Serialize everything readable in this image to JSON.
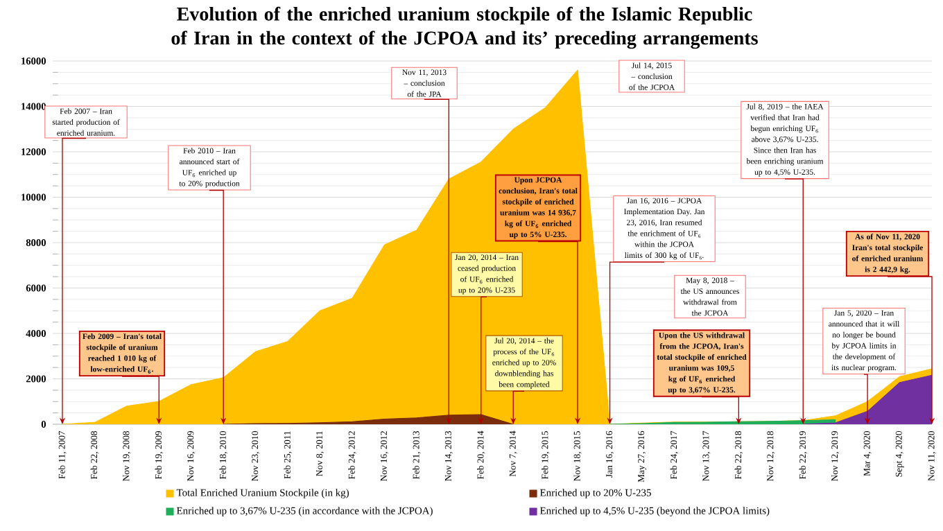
{
  "chart_data": {
    "type": "area",
    "title": "Evolution of the enriched uranium stockpile of the Islamic Republic of Iran in the context of the JCPOA and its’ preceding arrangements",
    "categories": [
      "Feb 11, 2007",
      "Feb 22, 2008",
      "Nov 19, 2008",
      "Feb 19, 2009",
      "Nov 16, 2009",
      "Feb 18, 2010",
      "Nov 23, 2010",
      "Feb 25, 2011",
      "Nov 8, 2011",
      "Feb 24, 2012",
      "Nov 16, 2012",
      "Feb 21, 2013",
      "Nov 14, 2013",
      "Feb 20, 2014",
      "Nov 7, 2014",
      "Feb 19, 2015",
      "Nov 18, 2015",
      "Jan 16, 2016",
      "May 27, 2016",
      "Feb 24, 2017",
      "Nov 13, 2017",
      "Feb 22, 2018",
      "Nov 12, 2018",
      "Feb 22, 2019",
      "Nov 12, 2019",
      "Mar 4, 2020",
      "Sept 4, 2020",
      "Nov 11, 2020"
    ],
    "series": [
      {
        "name": "Total Enriched Uranium Stockpile (in kg)",
        "color": "#ffc000",
        "values": [
          0,
          80,
          800,
          1010,
          1750,
          2050,
          3200,
          3650,
          5000,
          5550,
          7900,
          8550,
          10800,
          11550,
          13000,
          13950,
          15600,
          0,
          50,
          100,
          100,
          110,
          130,
          160,
          370,
          1000,
          2100,
          2442.9
        ]
      },
      {
        "name": "Enriched up to 20% U-235",
        "color": "#7b2c0c",
        "values": [
          null,
          null,
          null,
          null,
          null,
          0,
          30,
          40,
          70,
          110,
          230,
          280,
          400,
          430,
          0,
          null,
          null,
          null,
          null,
          null,
          null,
          null,
          null,
          null,
          null,
          null,
          null,
          null
        ]
      },
      {
        "name": "Enriched up to 3,67% U-235 (in accordance with the JCPOA)",
        "color": "#1fae5b",
        "values": [
          null,
          null,
          null,
          null,
          null,
          null,
          null,
          null,
          null,
          null,
          null,
          null,
          null,
          null,
          null,
          null,
          null,
          0,
          30,
          80,
          90,
          110,
          130,
          160,
          200,
          null,
          null,
          null
        ]
      },
      {
        "name": "Enriched up to 4,5% U-235 (beyond the JCPOA limits)",
        "color": "#7030a0",
        "values": [
          null,
          null,
          null,
          null,
          null,
          null,
          null,
          null,
          null,
          null,
          null,
          null,
          null,
          null,
          null,
          null,
          null,
          null,
          null,
          null,
          null,
          null,
          null,
          0,
          60,
          570,
          1840,
          2160
        ]
      }
    ],
    "ylim": [
      0,
      16000
    ],
    "yticks": [
      0,
      2000,
      4000,
      6000,
      8000,
      10000,
      12000,
      14000,
      16000
    ],
    "grid": "y",
    "legend": "bottom",
    "annotations": [
      {
        "text": "Feb 2007 – Iran started production of enriched uranium.",
        "x": "Feb 11, 2007",
        "y": 0
      },
      {
        "text": "Feb 2009 – Iran's total stockpile of uranium reached 1 010 kg of low-enriched UF$_{6}$.",
        "x": "Feb 19, 2009",
        "y": 0
      },
      {
        "text": "Feb 2010 – Iran announced start of UF$_{6}$ enriched up to 20% production",
        "x": "Feb 18, 2010",
        "y": 0
      },
      {
        "text": "Nov 11, 2013 – conclusion of the JPA",
        "x": "Nov 14, 2013",
        "y": 0
      },
      {
        "text": "Jan 20, 2014 – Iran ceased production of UF$_{6}$ enriched up to 20% U-235",
        "x": "Feb 20, 2014",
        "y": 0
      },
      {
        "text": "Jul 20, 2014 – the process of the UF$_{6}$ enriched up to 20% downblending has been completed",
        "x": "Nov 7, 2014",
        "y": 0
      },
      "Jul 14, 2015 – conclusion of the JCPOA",
      {
        "text": "Upon JCPOA conclusion, Iran's total stockpile of enriched uranium was 14 936,7 kg of UF$_{6}$ enriched up to 5% U-235.",
        "x": "Nov 18, 2015",
        "y": 0
      },
      {
        "text": "Jan 16, 2016 – JCPOA Implementation Day. Jan 23, 2016, Iran resumed the enrichment of UF₆ within the JCPOA limits of 300 kg of UF₆.",
        "x": "Jan 16, 2016",
        "y": 0
      },
      "May 8, 2018 – the US announces withdrawal from the JCPOA",
      {
        "text": "Upon the US withdrawal from the JCPOA, Iran's total stockpile of enriched uranium was 109,5 kg of UF$_{6}$ enriched up to 3,67% U-235.",
        "x": "Feb 22, 2018",
        "y": 0
      },
      {
        "text": "Jul 8, 2019 – the IAEA verified that Iran had begun enriching UF$_{6}$ above 3,67% U-235. Since then Iran has been enriching uranium up to 4,5% U-235.",
        "x": "Feb 22, 2019",
        "y": 0
      },
      {
        "text": "Jan 5, 2020 – Iran announced that it will no longer be bound by JCPOA limits in the development of its nuclear program.",
        "x": "Mar 4, 2020",
        "y": 0
      },
      {
        "text": "As of Nov 11, 2020 Iran's total stockpile of enriched uranium is 2 442,9 kg.",
        "x": "Nov 11, 2020",
        "y": 0
      }
    ]
  }
}
